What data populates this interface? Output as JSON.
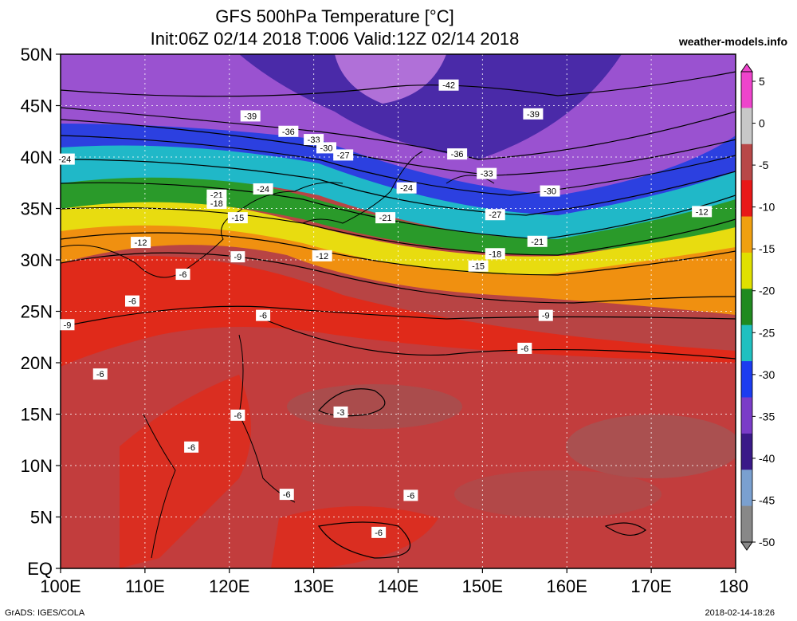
{
  "header": {
    "title": "GFS 500hPa Temperature [°C]",
    "subtitle": "Init:06Z 02/14 2018 T:006 Valid:12Z 02/14 2018",
    "site": "weather-models.info"
  },
  "footer": {
    "credit": "GrADS: IGES/COLA",
    "timestamp": "2018-02-14-18:26"
  },
  "map": {
    "lat_labels": [
      "50N",
      "45N",
      "40N",
      "35N",
      "30N",
      "25N",
      "20N",
      "15N",
      "10N",
      "5N",
      "EQ"
    ],
    "lon_labels": [
      "100E",
      "110E",
      "120E",
      "130E",
      "140E",
      "150E",
      "160E",
      "170E",
      "180"
    ],
    "lon_range": [
      100,
      180
    ],
    "lat_range": [
      0,
      50
    ]
  },
  "colorbar": {
    "labels": [
      "5",
      "0",
      "-5",
      "-10",
      "-15",
      "-20",
      "-25",
      "-30",
      "-35",
      "-40",
      "-45",
      "-50"
    ],
    "colors": [
      "#ee44cc",
      "#c8c8c8",
      "#b84848",
      "#e81818",
      "#f0a010",
      "#e0e000",
      "#208a20",
      "#20c0c0",
      "#1c3cf0",
      "#7a3cc8",
      "#3a1a88",
      "#7aa0d0",
      "#888888"
    ]
  },
  "contour_labels": [
    {
      "text": "-42",
      "lon": 146.0,
      "lat": 47.0
    },
    {
      "text": "-39",
      "lon": 122.5,
      "lat": 44.0
    },
    {
      "text": "-39",
      "lon": 156.0,
      "lat": 44.2
    },
    {
      "text": "-36",
      "lon": 127.0,
      "lat": 42.5
    },
    {
      "text": "-33",
      "lon": 130.0,
      "lat": 41.7
    },
    {
      "text": "-30",
      "lon": 131.5,
      "lat": 40.9
    },
    {
      "text": "-27",
      "lon": 133.5,
      "lat": 40.2
    },
    {
      "text": "-36",
      "lon": 147.0,
      "lat": 40.3
    },
    {
      "text": "-33",
      "lon": 150.5,
      "lat": 38.4
    },
    {
      "text": "-30",
      "lon": 158.0,
      "lat": 36.7
    },
    {
      "text": "-24",
      "lon": 100.5,
      "lat": 39.8
    },
    {
      "text": "-24",
      "lon": 124.0,
      "lat": 36.9
    },
    {
      "text": "-24",
      "lon": 141.0,
      "lat": 37.0
    },
    {
      "text": "-21",
      "lon": 118.5,
      "lat": 36.3
    },
    {
      "text": "-18",
      "lon": 118.5,
      "lat": 35.5
    },
    {
      "text": "-27",
      "lon": 151.5,
      "lat": 34.4
    },
    {
      "text": "-21",
      "lon": 138.5,
      "lat": 34.1
    },
    {
      "text": "-21",
      "lon": 156.5,
      "lat": 31.8
    },
    {
      "text": "-15",
      "lon": 121.0,
      "lat": 34.1
    },
    {
      "text": "-12",
      "lon": 176.0,
      "lat": 34.7
    },
    {
      "text": "-12",
      "lon": 109.5,
      "lat": 31.7
    },
    {
      "text": "-18",
      "lon": 151.5,
      "lat": 30.6
    },
    {
      "text": "-12",
      "lon": 131.0,
      "lat": 30.4
    },
    {
      "text": "-9",
      "lon": 121.0,
      "lat": 30.3
    },
    {
      "text": "-15",
      "lon": 149.5,
      "lat": 29.4
    },
    {
      "text": "-6",
      "lon": 114.5,
      "lat": 28.6
    },
    {
      "text": "-6",
      "lon": 108.5,
      "lat": 26.0
    },
    {
      "text": "-6",
      "lon": 124.0,
      "lat": 24.6
    },
    {
      "text": "-9",
      "lon": 100.8,
      "lat": 23.7
    },
    {
      "text": "-9",
      "lon": 157.5,
      "lat": 24.6
    },
    {
      "text": "-6",
      "lon": 155.0,
      "lat": 21.4
    },
    {
      "text": "-6",
      "lon": 104.7,
      "lat": 18.9
    },
    {
      "text": "-3",
      "lon": 133.2,
      "lat": 15.2
    },
    {
      "text": "-6",
      "lon": 121.0,
      "lat": 14.9
    },
    {
      "text": "-6",
      "lon": 115.5,
      "lat": 11.8
    },
    {
      "text": "-6",
      "lon": 126.8,
      "lat": 7.2
    },
    {
      "text": "-6",
      "lon": 141.5,
      "lat": 7.1
    },
    {
      "text": "-6",
      "lon": 137.7,
      "lat": 3.5
    }
  ]
}
